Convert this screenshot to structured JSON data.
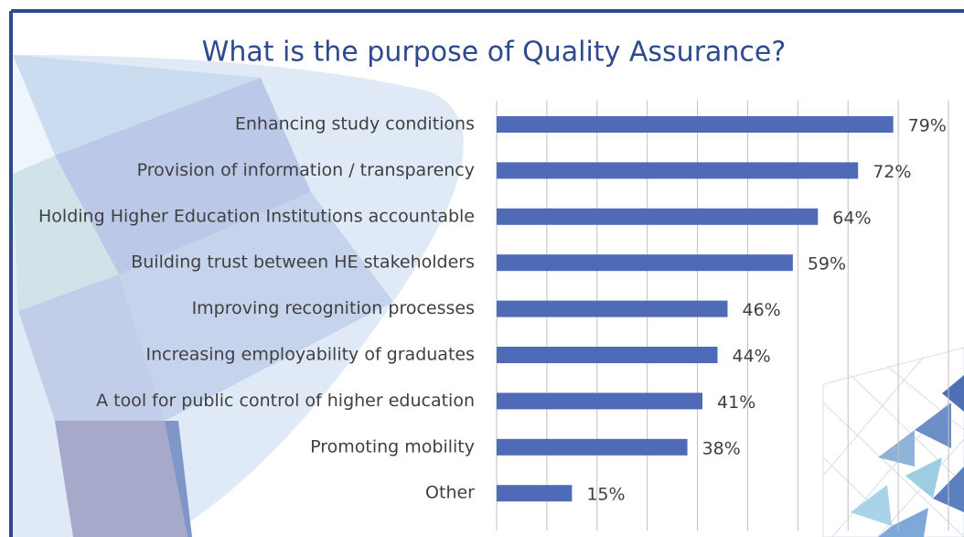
{
  "chart_data": {
    "type": "bar",
    "orientation": "horizontal",
    "title": "What is the purpose of Quality Assurance?",
    "categories": [
      "Enhancing study conditions",
      "Provision of information / transparency",
      "Holding Higher Education Institutions accountable",
      "Building trust between HE stakeholders",
      "Improving recognition processes",
      "Increasing employability of graduates",
      "A tool for public control of higher education",
      "Promoting mobility",
      "Other"
    ],
    "values": [
      79,
      72,
      64,
      59,
      46,
      44,
      41,
      38,
      15
    ],
    "value_labels": [
      "79%",
      "72%",
      "64%",
      "59%",
      "46%",
      "44%",
      "41%",
      "38%",
      "15%"
    ],
    "color": "#4f6bb8",
    "xlim": [
      0,
      90
    ],
    "xticks": [
      0,
      10,
      20,
      30,
      40,
      50,
      60,
      70,
      80,
      90
    ],
    "grid": true
  }
}
